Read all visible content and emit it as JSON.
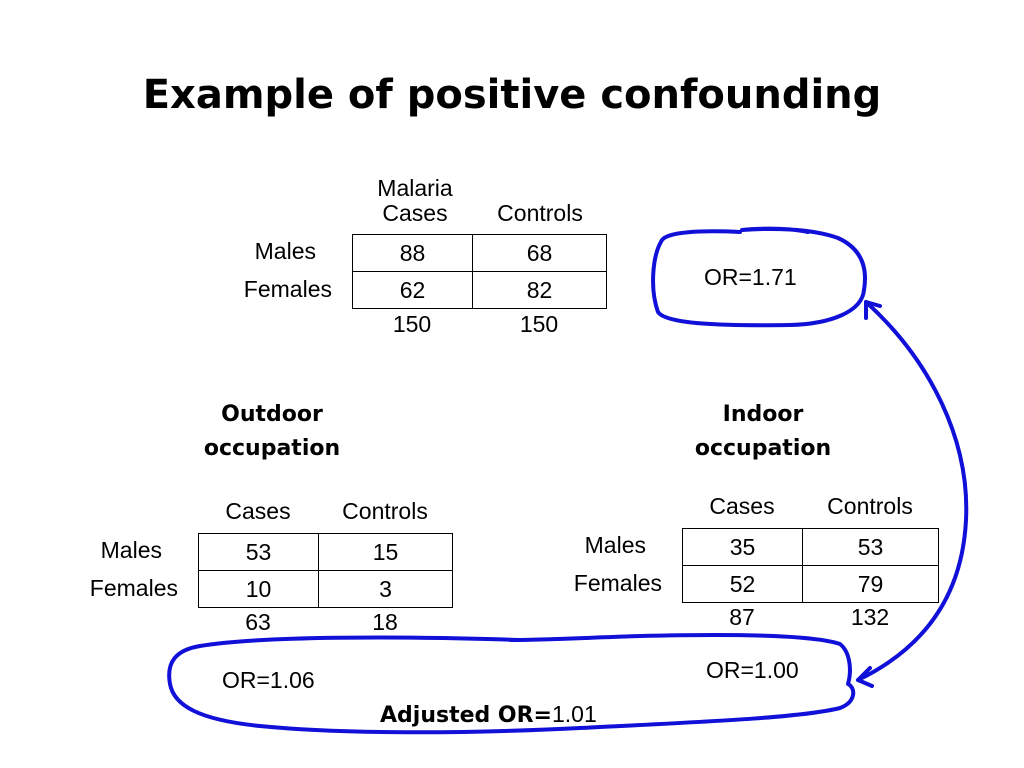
{
  "title": "Example of positive confounding",
  "crude": {
    "col_headers": [
      "Malaria\nCases",
      "Controls"
    ],
    "col_header_line1": "Malaria",
    "col_header_line2": "Cases",
    "col_header_controls": "Controls",
    "row_labels": [
      "Males",
      "Females"
    ],
    "cells": [
      [
        "88",
        "68"
      ],
      [
        "62",
        "82"
      ]
    ],
    "totals": [
      "150",
      "150"
    ],
    "or_label": "OR=1.71"
  },
  "outdoor": {
    "heading_line1": "Outdoor",
    "heading_line2": "occupation",
    "col_headers": [
      "Cases",
      "Controls"
    ],
    "row_labels": [
      "Males",
      "Females"
    ],
    "cells": [
      [
        "53",
        "15"
      ],
      [
        "10",
        "3"
      ]
    ],
    "totals": [
      "63",
      "18"
    ],
    "or_label": "OR=1.06"
  },
  "indoor": {
    "heading_line1": "Indoor",
    "heading_line2": "occupation",
    "col_headers": [
      "Cases",
      "Controls"
    ],
    "row_labels": [
      "Males",
      "Females"
    ],
    "cells": [
      [
        "35",
        "53"
      ],
      [
        "52",
        "79"
      ]
    ],
    "totals": [
      "87",
      "132"
    ],
    "or_label": "OR=1.00"
  },
  "adjusted": {
    "label": "Adjusted OR=",
    "value": "1.01"
  },
  "ink_color": "#1010d8"
}
